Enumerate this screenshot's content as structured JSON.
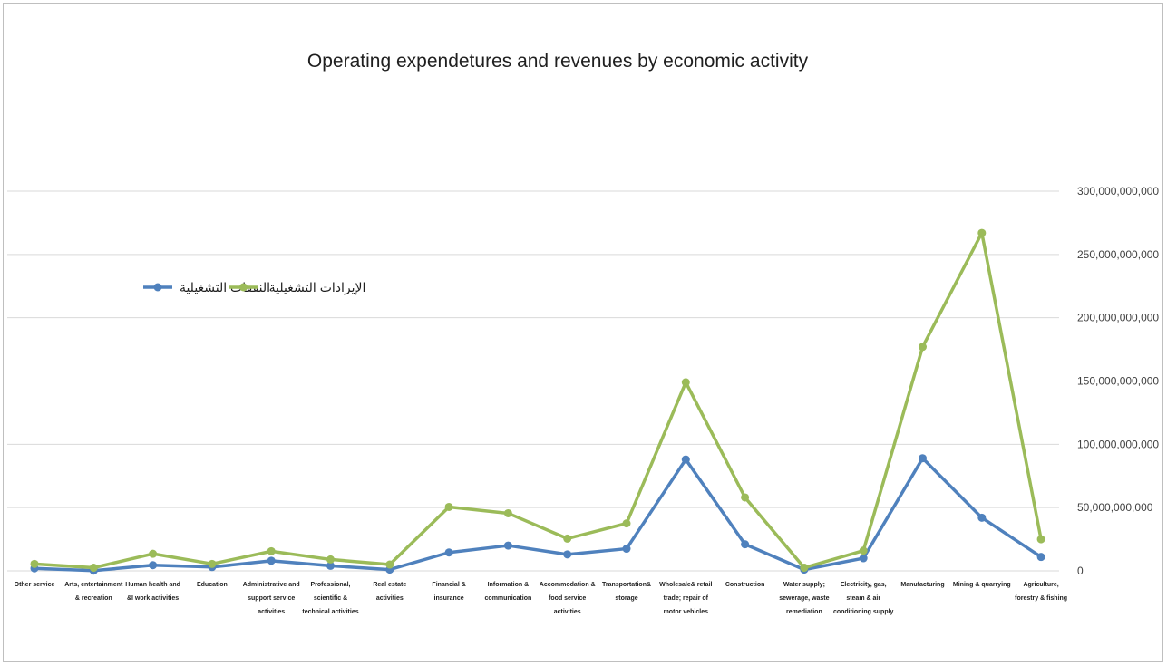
{
  "chart_data": {
    "type": "line",
    "title": "Operating expendetures and revenues by economic activity",
    "xlabel": "",
    "ylabel": "",
    "ylim": [
      0,
      300000000000
    ],
    "yticks": [
      0,
      50000000000,
      100000000000,
      150000000000,
      200000000000,
      250000000000,
      300000000000
    ],
    "ytick_labels": [
      "0",
      "50,000,000,000",
      "100,000,000,000",
      "150,000,000,000",
      "200,000,000,000",
      "250,000,000,000",
      "300,000,000,000"
    ],
    "y_axis_side": "right",
    "grid": true,
    "legend_position": "left",
    "categories": [
      "Other service",
      "Arts, entertainment & recreation",
      "Human health and &I work activities",
      "Education",
      "Administrative and support service activities",
      "Professional, scientific & technical activities",
      "Real estate activities",
      "Financial & insurance",
      "Information & communication",
      "Accommodation & food service activities",
      "Transportation& storage",
      "Wholesale& retail trade; repair of motor vehicles",
      "Construction",
      "Water supply; sewerage, waste remediation",
      "Electricity, gas, steam & air conditioning supply",
      "Manufacturing",
      "Mining & quarrying",
      "Agriculture, forestry & fishing"
    ],
    "category_lines": [
      [
        "Other service"
      ],
      [
        "Arts, entertainment",
        "& recreation"
      ],
      [
        "Human health and",
        "&I work activities"
      ],
      [
        "Education"
      ],
      [
        "Administrative and",
        "support service",
        "activities"
      ],
      [
        "Professional,",
        "scientific &",
        "technical activities"
      ],
      [
        "Real estate",
        "activities"
      ],
      [
        "Financial &",
        "insurance"
      ],
      [
        "Information &",
        "communication"
      ],
      [
        "Accommodation &",
        "food service",
        "activities"
      ],
      [
        "Transportation&",
        "storage"
      ],
      [
        "Wholesale& retail",
        "trade; repair of",
        "motor vehicles"
      ],
      [
        "Construction"
      ],
      [
        "Water supply;",
        "sewerage, waste",
        "remediation"
      ],
      [
        "Electricity, gas,",
        "steam & air",
        "conditioning supply"
      ],
      [
        "Manufacturing"
      ],
      [
        "Mining & quarrying"
      ],
      [
        "Agriculture,",
        "forestry & fishing"
      ]
    ],
    "series": [
      {
        "name": "النفقات التشغيلية",
        "color": "#4f81bd",
        "values": [
          2000000000,
          200000000,
          4500000000,
          3000000000,
          8000000000,
          4000000000,
          1000000000,
          14500000000,
          20000000000,
          13000000000,
          17500000000,
          88000000000,
          21000000000,
          1000000000,
          10000000000,
          89000000000,
          42000000000,
          11000000000
        ]
      },
      {
        "name": "الإيرادات التشغيلية",
        "color": "#9bbb59",
        "values": [
          5500000000,
          2500000000,
          13500000000,
          5500000000,
          15500000000,
          9000000000,
          5000000000,
          50500000000,
          45500000000,
          25500000000,
          37500000000,
          149000000000,
          58000000000,
          2500000000,
          16000000000,
          177000000000,
          267000000000,
          25000000000
        ]
      }
    ]
  }
}
